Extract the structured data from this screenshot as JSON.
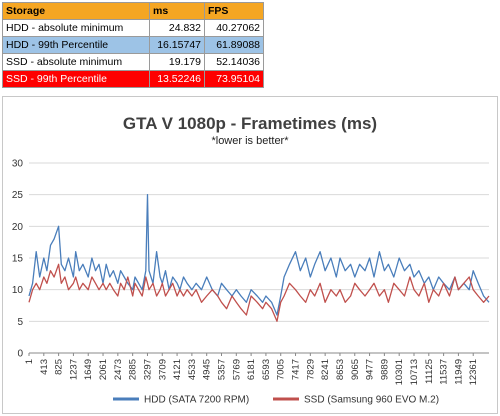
{
  "table": {
    "headers": [
      "Storage",
      "ms",
      "FPS"
    ],
    "rows": [
      {
        "label": "HDD - absolute minimum",
        "ms": "24.832",
        "fps": "40.27062"
      },
      {
        "label": "HDD - 99th Percentile",
        "ms": "16.15747",
        "fps": "61.89088"
      },
      {
        "label": "SSD - absolute minimum",
        "ms": "19.179",
        "fps": "52.14036"
      },
      {
        "label": "SSD - 99th Percentile",
        "ms": "13.52246",
        "fps": "73.95104"
      }
    ]
  },
  "chart_data": {
    "type": "line",
    "title": "GTA V 1080p - Frametimes (ms)",
    "subtitle": "*lower is better*",
    "xlabel": "",
    "ylabel": "",
    "ylim": [
      0,
      30
    ],
    "yticks": [
      0,
      5,
      10,
      15,
      20,
      25,
      30
    ],
    "xlim": [
      1,
      12800
    ],
    "xticks": [
      "1",
      "413",
      "825",
      "1237",
      "1649",
      "2061",
      "2473",
      "2885",
      "3297",
      "3709",
      "4121",
      "4533",
      "4945",
      "5357",
      "5769",
      "6181",
      "6593",
      "7005",
      "7417",
      "7829",
      "8241",
      "8653",
      "9065",
      "9477",
      "9889",
      "10301",
      "10713",
      "11125",
      "11537",
      "11949",
      "12361"
    ],
    "grid": true,
    "legend_position": "bottom",
    "series": [
      {
        "name": "HDD (SATA 7200 RPM)",
        "color": "#4a7ebb",
        "x": [
          1,
          100,
          200,
          300,
          413,
          500,
          600,
          700,
          825,
          900,
          1000,
          1100,
          1237,
          1300,
          1400,
          1500,
          1649,
          1750,
          1850,
          1950,
          2061,
          2150,
          2250,
          2350,
          2473,
          2550,
          2650,
          2750,
          2885,
          2950,
          3050,
          3150,
          3250,
          3297,
          3340,
          3450,
          3550,
          3650,
          3709,
          3800,
          3900,
          4000,
          4121,
          4200,
          4300,
          4400,
          4533,
          4650,
          4800,
          4945,
          5100,
          5250,
          5357,
          5500,
          5650,
          5769,
          5900,
          6050,
          6181,
          6350,
          6500,
          6593,
          6750,
          6900,
          7005,
          7100,
          7250,
          7417,
          7550,
          7700,
          7829,
          7950,
          8100,
          8241,
          8400,
          8550,
          8653,
          8800,
          8950,
          9065,
          9200,
          9350,
          9477,
          9600,
          9750,
          9889,
          10000,
          10150,
          10301,
          10450,
          10600,
          10713,
          10850,
          11000,
          11125,
          11250,
          11400,
          11537,
          11700,
          11850,
          11949,
          12100,
          12250,
          12361,
          12500,
          12650,
          12800
        ],
        "y": [
          9,
          11,
          16,
          12,
          15,
          13,
          17,
          18,
          20,
          14,
          13,
          15,
          12,
          16,
          13,
          14,
          12,
          15,
          13,
          14,
          11,
          14,
          12,
          13,
          11,
          13,
          12,
          11,
          10,
          12,
          11,
          10,
          13,
          25,
          13,
          11,
          16,
          12,
          11,
          13,
          10,
          12,
          11,
          10,
          12,
          11,
          10,
          11,
          10,
          12,
          10,
          9,
          11,
          10,
          9,
          10,
          9,
          8,
          10,
          9,
          8,
          9,
          8,
          6,
          9,
          12,
          14,
          16,
          13,
          15,
          12,
          14,
          16,
          13,
          15,
          12,
          15,
          13,
          14,
          12,
          14,
          13,
          15,
          12,
          16,
          13,
          14,
          12,
          15,
          13,
          14,
          12,
          13,
          11,
          12,
          10,
          12,
          11,
          10,
          12,
          10,
          11,
          10,
          13,
          11,
          9,
          8
        ],
        "line_width": 1.3
      },
      {
        "name": "SSD (Samsung 960 EVO M.2)",
        "color": "#c0504d",
        "x": [
          1,
          100,
          200,
          300,
          413,
          500,
          600,
          700,
          825,
          900,
          1000,
          1100,
          1237,
          1300,
          1400,
          1500,
          1649,
          1750,
          1850,
          1950,
          2061,
          2150,
          2250,
          2350,
          2473,
          2550,
          2650,
          2750,
          2885,
          2950,
          3050,
          3150,
          3250,
          3297,
          3340,
          3450,
          3550,
          3650,
          3709,
          3800,
          3900,
          4000,
          4121,
          4200,
          4300,
          4400,
          4533,
          4650,
          4800,
          4945,
          5100,
          5250,
          5357,
          5500,
          5650,
          5769,
          5900,
          6050,
          6181,
          6350,
          6500,
          6593,
          6750,
          6900,
          7005,
          7100,
          7250,
          7417,
          7550,
          7700,
          7829,
          7950,
          8100,
          8241,
          8400,
          8550,
          8653,
          8800,
          8950,
          9065,
          9200,
          9350,
          9477,
          9600,
          9750,
          9889,
          10000,
          10150,
          10301,
          10450,
          10600,
          10713,
          10850,
          11000,
          11125,
          11250,
          11400,
          11537,
          11700,
          11850,
          11949,
          12100,
          12250,
          12361,
          12500,
          12650,
          12800
        ],
        "y": [
          8,
          10,
          11,
          10,
          12,
          11,
          13,
          12,
          14,
          11,
          12,
          10,
          11,
          12,
          10,
          11,
          10,
          12,
          11,
          10,
          11,
          10,
          11,
          10,
          9,
          11,
          10,
          12,
          9,
          11,
          10,
          9,
          12,
          11,
          10,
          11,
          9,
          10,
          11,
          9,
          10,
          11,
          9,
          10,
          9,
          10,
          9,
          10,
          8,
          9,
          10,
          9,
          8,
          7,
          9,
          8,
          7,
          6,
          9,
          8,
          7,
          8,
          7,
          5,
          8,
          9,
          11,
          10,
          9,
          8,
          10,
          9,
          11,
          8,
          10,
          9,
          10,
          8,
          9,
          11,
          10,
          9,
          10,
          11,
          9,
          10,
          8,
          11,
          10,
          9,
          12,
          10,
          9,
          11,
          8,
          10,
          9,
          11,
          9,
          12,
          10,
          11,
          12,
          10,
          9,
          8,
          9
        ],
        "line_width": 1.3
      }
    ]
  }
}
